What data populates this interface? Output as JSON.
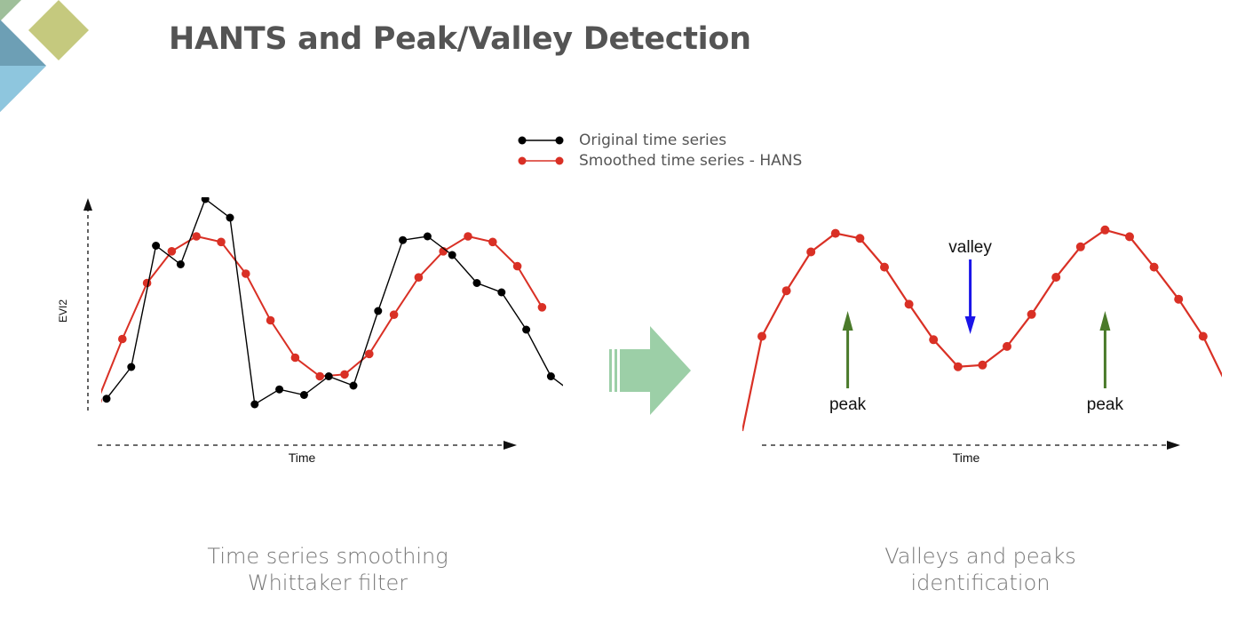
{
  "title": "HANTS and Peak/Valley Detection",
  "legend": {
    "original": "Original time series",
    "smoothed": "Smoothed time series - HANS"
  },
  "colors": {
    "original": "#000000",
    "smoothed": "#d93025",
    "arrow_peak": "#4a7a2a",
    "arrow_valley": "#1a14e8",
    "big_arrow": "#9ccfa7",
    "deco_green": "#c5c97e",
    "deco_teal": "#6d9fb5",
    "deco_blue": "#8ec6de"
  },
  "chart_data": [
    {
      "type": "line",
      "xlabel": "Time",
      "ylabel": "EVI2",
      "series": [
        {
          "key": "original",
          "x": [
            0,
            1,
            2,
            3,
            4,
            5,
            6,
            7,
            8,
            9,
            10,
            11,
            12,
            13,
            14,
            15,
            16,
            17,
            18,
            19
          ],
          "values": [
            0.13,
            0.3,
            0.95,
            0.85,
            1.2,
            1.1,
            0.1,
            0.18,
            0.15,
            0.25,
            0.2,
            0.6,
            0.98,
            1.0,
            0.9,
            0.75,
            0.7,
            0.5,
            0.25,
            0.15
          ]
        },
        {
          "key": "smoothed",
          "x": [
            0,
            1,
            2,
            3,
            4,
            5,
            6,
            7,
            8,
            9,
            10,
            11,
            12,
            13,
            14,
            15,
            16,
            17,
            18
          ],
          "values": [
            0.12,
            0.45,
            0.75,
            0.92,
            1.0,
            0.97,
            0.8,
            0.55,
            0.35,
            0.25,
            0.26,
            0.37,
            0.58,
            0.78,
            0.92,
            1.0,
            0.97,
            0.84,
            0.62
          ]
        }
      ]
    },
    {
      "type": "line",
      "xlabel": "Time",
      "series": [
        {
          "key": "smoothed",
          "x": [
            0,
            1,
            2,
            3,
            4,
            5,
            6,
            7,
            8,
            9,
            10,
            11,
            12,
            13,
            14,
            15,
            16,
            17,
            18,
            19
          ],
          "values": [
            0.35,
            0.62,
            0.85,
            0.96,
            0.93,
            0.76,
            0.54,
            0.33,
            0.17,
            0.18,
            0.29,
            0.48,
            0.7,
            0.88,
            0.98,
            0.94,
            0.76,
            0.57,
            0.35,
            0.05
          ]
        }
      ],
      "annotations": [
        {
          "text": "peak",
          "x": 3.5,
          "kind": "peak"
        },
        {
          "text": "valley",
          "x": 8.5,
          "kind": "valley"
        },
        {
          "text": "peak",
          "x": 14.0,
          "kind": "peak"
        }
      ]
    }
  ],
  "captions": {
    "left": [
      "Time series smoothing",
      "Whittaker filter"
    ],
    "right": [
      "Valleys and peaks",
      "identification"
    ]
  }
}
